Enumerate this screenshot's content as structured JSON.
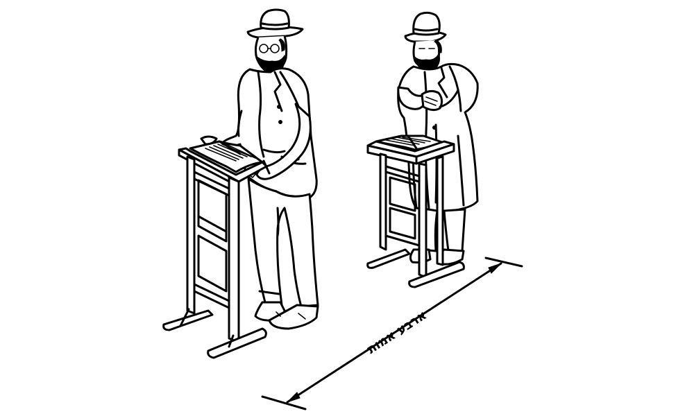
{
  "illustration": {
    "dimension_label": "ארבע אמות"
  }
}
